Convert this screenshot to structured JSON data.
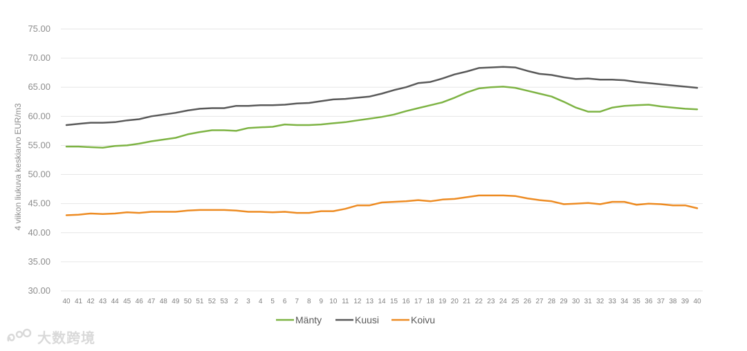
{
  "chart_data": {
    "type": "line",
    "title": "",
    "xlabel": "",
    "ylabel": "4 viikon liukuva keskiarvo EUR/m3",
    "ylim": [
      30,
      75
    ],
    "yticks": [
      "30.00",
      "35.00",
      "40.00",
      "45.00",
      "50.00",
      "55.00",
      "60.00",
      "65.00",
      "70.00",
      "75.00"
    ],
    "grid": "horizontal",
    "legend_position": "bottom",
    "categories": [
      "40",
      "41",
      "42",
      "43",
      "44",
      "45",
      "46",
      "47",
      "48",
      "49",
      "50",
      "51",
      "52",
      "53",
      "2",
      "3",
      "4",
      "5",
      "6",
      "7",
      "8",
      "9",
      "10",
      "11",
      "12",
      "13",
      "14",
      "15",
      "16",
      "17",
      "18",
      "19",
      "20",
      "21",
      "22",
      "23",
      "24",
      "25",
      "26",
      "27",
      "28",
      "29",
      "30",
      "31",
      "32",
      "33",
      "34",
      "35",
      "36",
      "37",
      "38",
      "39",
      "40"
    ],
    "series": [
      {
        "name": "Mänty",
        "color": "#7db343",
        "values": [
          54.8,
          54.8,
          54.7,
          54.6,
          54.9,
          55.0,
          55.3,
          55.7,
          56.0,
          56.3,
          56.9,
          57.3,
          57.6,
          57.6,
          57.5,
          58.0,
          58.1,
          58.2,
          58.6,
          58.5,
          58.5,
          58.6,
          58.8,
          59.0,
          59.3,
          59.6,
          59.9,
          60.3,
          60.9,
          61.4,
          61.9,
          62.4,
          63.2,
          64.1,
          64.8,
          65.0,
          65.1,
          64.9,
          64.4,
          63.9,
          63.4,
          62.5,
          61.5,
          60.8,
          60.8,
          61.5,
          61.8,
          61.9,
          62.0,
          61.7,
          61.5,
          61.3,
          61.2
        ]
      },
      {
        "name": "Kuusi",
        "color": "#595959",
        "values": [
          58.5,
          58.7,
          58.9,
          58.9,
          59.0,
          59.3,
          59.5,
          60.0,
          60.3,
          60.6,
          61.0,
          61.3,
          61.4,
          61.4,
          61.8,
          61.8,
          61.9,
          61.9,
          62.0,
          62.2,
          62.3,
          62.6,
          62.9,
          63.0,
          63.2,
          63.4,
          63.9,
          64.5,
          65.0,
          65.7,
          65.9,
          66.5,
          67.2,
          67.7,
          68.3,
          68.4,
          68.5,
          68.4,
          67.8,
          67.3,
          67.1,
          66.7,
          66.4,
          66.5,
          66.3,
          66.3,
          66.2,
          65.9,
          65.7,
          65.5,
          65.3,
          65.1,
          64.9
        ]
      },
      {
        "name": "Koivu",
        "color": "#ed8b22",
        "values": [
          43.0,
          43.1,
          43.3,
          43.2,
          43.3,
          43.5,
          43.4,
          43.6,
          43.6,
          43.6,
          43.8,
          43.9,
          43.9,
          43.9,
          43.8,
          43.6,
          43.6,
          43.5,
          43.6,
          43.4,
          43.4,
          43.7,
          43.7,
          44.1,
          44.7,
          44.7,
          45.2,
          45.3,
          45.4,
          45.6,
          45.4,
          45.7,
          45.8,
          46.1,
          46.4,
          46.4,
          46.4,
          46.3,
          45.9,
          45.6,
          45.4,
          44.9,
          45.0,
          45.1,
          44.9,
          45.3,
          45.3,
          44.8,
          45.0,
          44.9,
          44.7,
          44.7,
          44.2
        ]
      }
    ]
  },
  "watermark": {
    "text": "大数跨境",
    "icon": "swirl-logo-icon"
  }
}
